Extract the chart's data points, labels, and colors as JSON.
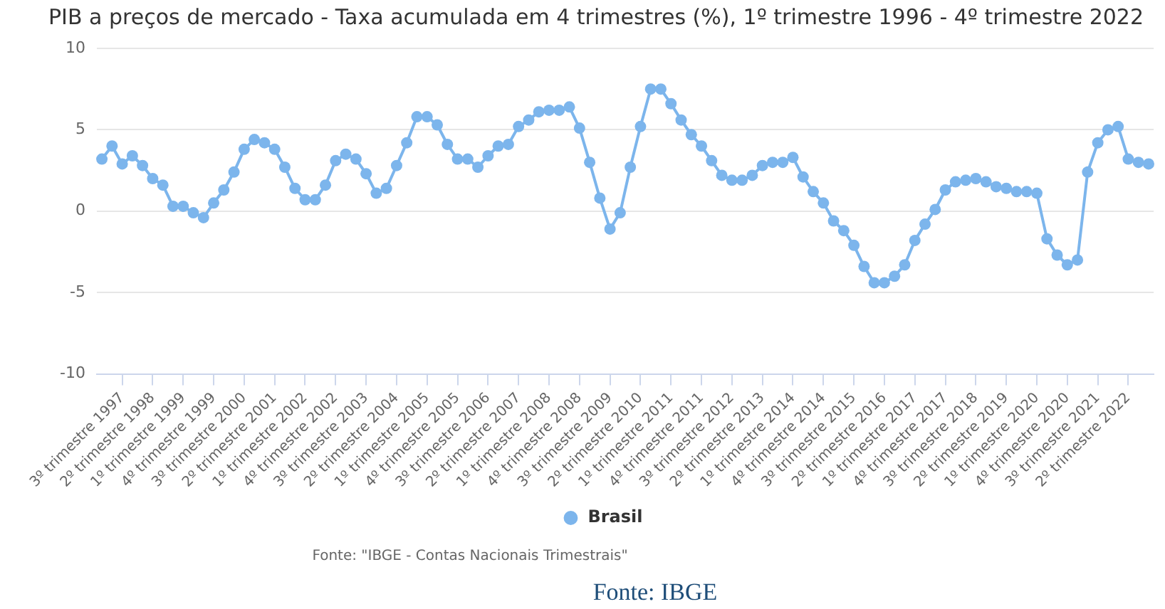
{
  "chart_data": {
    "type": "line",
    "title": "PIB a preços de mercado - Taxa acumulada em 4 trimestres (%), 1º trimestre 1996 - 4º trimestre 2022",
    "categories": [
      null,
      null,
      "3º trimestre 1997",
      null,
      null,
      "2º trimestre 1998",
      null,
      null,
      "1º trimestre 1999",
      null,
      null,
      "4º trimestre 1999",
      null,
      null,
      "3º trimestre 2000",
      null,
      null,
      "2º trimestre 2001",
      null,
      null,
      "1º trimestre 2002",
      null,
      null,
      "4º trimestre 2002",
      null,
      null,
      "3º trimestre 2003",
      null,
      null,
      "2º trimestre 2004",
      null,
      null,
      "1º trimestre 2005",
      null,
      null,
      "4º trimestre 2005",
      null,
      null,
      "3º trimestre 2006",
      null,
      null,
      "2º trimestre 2007",
      null,
      null,
      "1º trimestre 2008",
      null,
      null,
      "4º trimestre 2008",
      null,
      null,
      "3º trimestre 2009",
      null,
      null,
      "2º trimestre 2010",
      null,
      null,
      "1º trimestre 2011",
      null,
      null,
      "4º trimestre 2011",
      null,
      null,
      "3º trimestre 2012",
      null,
      null,
      "2º trimestre 2013",
      null,
      null,
      "1º trimestre 2014",
      null,
      null,
      "4º trimestre 2014",
      null,
      null,
      "3º trimestre 2015",
      null,
      null,
      "2º trimestre 2016",
      null,
      null,
      "1º trimestre 2017",
      null,
      null,
      "4º trimestre 2017",
      null,
      null,
      "3º trimestre 2018",
      null,
      null,
      "2º trimestre 2019",
      null,
      null,
      "1º trimestre 2020",
      null,
      null,
      "4º trimestre 2020",
      null,
      null,
      "3º trimestre 2021",
      null,
      null,
      "2º trimestre 2022",
      null,
      null
    ],
    "series": [
      {
        "name": "Brasil",
        "color": "#7cb5ec",
        "values": [
          3.2,
          4.0,
          2.9,
          3.4,
          2.8,
          2.0,
          1.6,
          0.3,
          0.3,
          -0.1,
          -0.4,
          0.5,
          1.3,
          2.4,
          3.8,
          4.4,
          4.2,
          3.8,
          2.7,
          1.4,
          0.7,
          0.7,
          1.6,
          3.1,
          3.5,
          3.2,
          2.3,
          1.1,
          1.4,
          2.8,
          4.2,
          5.8,
          5.8,
          5.3,
          4.1,
          3.2,
          3.2,
          2.7,
          3.4,
          4.0,
          4.1,
          5.2,
          5.6,
          6.1,
          6.2,
          6.2,
          6.4,
          5.1,
          3.0,
          0.8,
          -1.1,
          -0.1,
          2.7,
          5.2,
          7.5,
          7.5,
          6.6,
          5.6,
          4.7,
          4.0,
          3.1,
          2.2,
          1.9,
          1.9,
          2.2,
          2.8,
          3.0,
          3.0,
          3.3,
          2.1,
          1.2,
          0.5,
          -0.6,
          -1.2,
          -2.1,
          -3.4,
          -4.4,
          -4.4,
          -4.0,
          -3.3,
          -1.8,
          -0.8,
          0.1,
          1.3,
          1.8,
          1.9,
          2.0,
          1.8,
          1.5,
          1.4,
          1.2,
          1.2,
          1.1,
          -1.7,
          -2.7,
          -3.3,
          -3.0,
          2.4,
          4.2,
          5.0,
          5.2,
          3.2,
          3.0,
          2.9
        ]
      }
    ],
    "ylim": [
      -10,
      10
    ],
    "yticks": [
      -10,
      -5,
      0,
      5,
      10
    ],
    "grid": "y",
    "legend": "bottom",
    "marker": "circle",
    "line_style": "solid",
    "annotations": [
      "Fonte: \"IBGE - Contas Nacionais Trimestrais\"",
      "Fonte: IBGE"
    ]
  }
}
